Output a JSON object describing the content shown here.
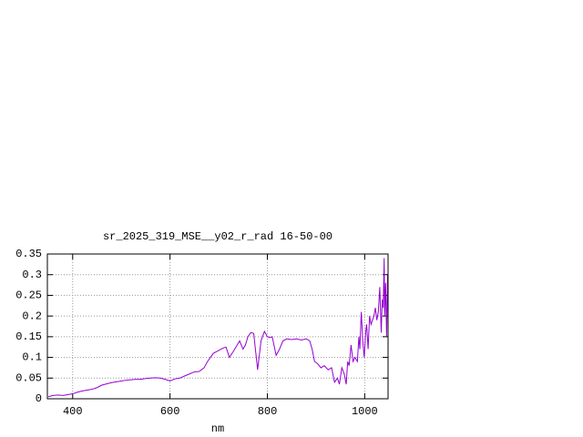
{
  "chart_data": {
    "type": "line",
    "title": "sr_2025_319_MSE__y02_r_rad 16-50-00",
    "xlabel": "nm",
    "x": [
      350,
      360,
      370,
      380,
      390,
      400,
      410,
      420,
      430,
      440,
      450,
      460,
      470,
      480,
      490,
      500,
      510,
      520,
      530,
      540,
      550,
      560,
      570,
      580,
      590,
      600,
      610,
      620,
      630,
      640,
      650,
      660,
      670,
      677,
      683,
      689,
      697,
      708,
      715,
      722,
      732,
      743,
      750,
      755,
      760,
      766,
      772,
      780,
      787,
      794,
      800,
      805,
      810,
      818,
      825,
      832,
      840,
      850,
      860,
      870,
      880,
      887,
      892,
      897,
      903,
      910,
      917,
      925,
      932,
      938,
      944,
      948,
      953,
      958,
      962,
      965,
      968,
      972,
      976,
      980,
      985,
      988,
      990,
      993,
      996,
      999,
      1002,
      1004,
      1007,
      1010,
      1013,
      1016,
      1019,
      1022,
      1025,
      1028,
      1031,
      1034,
      1036,
      1038,
      1040,
      1041,
      1043,
      1045,
      1047,
      1048
    ],
    "series": [
      {
        "name": "sr_2025_319_MSE__y02_r_rad 16-50-00",
        "color": "#9400d3",
        "values": [
          0.005,
          0.008,
          0.009,
          0.008,
          0.01,
          0.012,
          0.016,
          0.019,
          0.021,
          0.023,
          0.027,
          0.033,
          0.036,
          0.039,
          0.041,
          0.043,
          0.045,
          0.046,
          0.047,
          0.047,
          0.049,
          0.05,
          0.051,
          0.05,
          0.047,
          0.043,
          0.048,
          0.05,
          0.055,
          0.06,
          0.065,
          0.066,
          0.075,
          0.09,
          0.1,
          0.11,
          0.115,
          0.122,
          0.125,
          0.1,
          0.118,
          0.14,
          0.12,
          0.13,
          0.15,
          0.16,
          0.158,
          0.07,
          0.14,
          0.163,
          0.15,
          0.148,
          0.15,
          0.105,
          0.12,
          0.14,
          0.145,
          0.143,
          0.145,
          0.142,
          0.145,
          0.14,
          0.12,
          0.09,
          0.085,
          0.075,
          0.08,
          0.07,
          0.075,
          0.04,
          0.05,
          0.035,
          0.075,
          0.06,
          0.035,
          0.09,
          0.08,
          0.13,
          0.09,
          0.1,
          0.09,
          0.15,
          0.12,
          0.21,
          0.14,
          0.1,
          0.16,
          0.18,
          0.12,
          0.2,
          0.18,
          0.19,
          0.2,
          0.22,
          0.19,
          0.21,
          0.27,
          0.16,
          0.24,
          0.22,
          0.34,
          0.2,
          0.28,
          0.15,
          0.3,
          0.24
        ]
      }
    ],
    "xlim": [
      348,
      1048
    ],
    "ylim": [
      0,
      0.35
    ],
    "xticks": [
      400,
      600,
      800,
      1000
    ],
    "yticks": [
      0,
      0.05,
      0.1,
      0.15,
      0.2,
      0.25,
      0.3,
      0.35
    ],
    "grid": true
  }
}
